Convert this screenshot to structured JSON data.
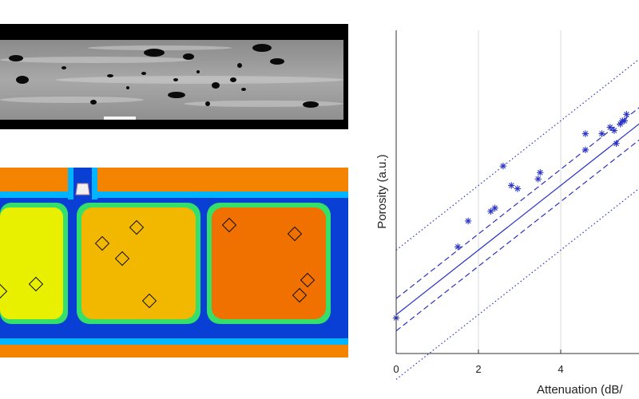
{
  "ct_scan": {
    "kind": "grayscale CT slice with dark pores"
  },
  "cscan": {
    "kind": "ultrasonic attenuation map",
    "colormap": [
      "#0a3fd6",
      "#00b4ff",
      "#35e06a",
      "#f2f000",
      "#f6a000",
      "#f05a00"
    ]
  },
  "chart_data": {
    "type": "scatter",
    "xlabel": "Attenuation (dB/",
    "ylabel": "Porosity (a.u.)",
    "xlim": [
      0,
      6
    ],
    "xticks": [
      "0",
      "2",
      "4"
    ],
    "grid": "vertical",
    "marker": "asterisk",
    "color": "#2a33c8",
    "x": [
      0.0,
      1.5,
      1.75,
      2.3,
      2.4,
      2.6,
      2.8,
      2.95,
      3.45,
      3.5,
      4.6,
      4.6,
      5.0,
      5.2,
      5.3,
      5.35,
      5.45,
      5.5,
      5.55,
      5.6
    ],
    "y": [
      0.11,
      0.33,
      0.41,
      0.44,
      0.45,
      0.58,
      0.52,
      0.51,
      0.54,
      0.56,
      0.63,
      0.68,
      0.68,
      0.7,
      0.69,
      0.65,
      0.71,
      0.72,
      0.72,
      0.74
    ],
    "fit": {
      "intercept": 0.12,
      "slope": 0.1
    },
    "confidence_band": 0.05,
    "prediction_band": 0.2
  }
}
